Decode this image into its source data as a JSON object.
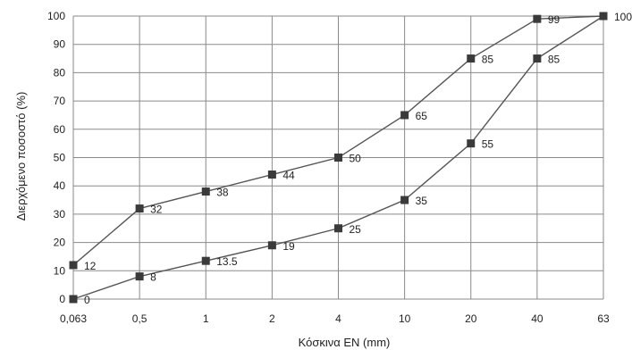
{
  "chart_data": {
    "type": "line",
    "title": "",
    "xlabel": "Κόσκινα EN (mm)",
    "ylabel": "Διερχόμενο ποσοστό (%)",
    "categories": [
      "0,063",
      "0,5",
      "1",
      "2",
      "4",
      "10",
      "20",
      "40",
      "63"
    ],
    "ylim": [
      0,
      100
    ],
    "yticks": [
      0,
      10,
      20,
      30,
      40,
      50,
      60,
      70,
      80,
      90,
      100
    ],
    "grid": true,
    "legend": "none",
    "series": [
      {
        "values": [
          12,
          32,
          38,
          44,
          50,
          65,
          85,
          99,
          100
        ],
        "labels": [
          "12",
          "32",
          "38",
          "44",
          "50",
          "65",
          "85",
          "99",
          "100"
        ]
      },
      {
        "values": [
          0,
          8,
          13.5,
          19,
          25,
          35,
          55,
          85,
          100
        ],
        "labels": [
          "0",
          "8",
          "13.5",
          "19",
          "25",
          "35",
          "55",
          "85",
          ""
        ]
      }
    ],
    "colors": {
      "grid": "#8a8a8a",
      "line": "#555555",
      "marker": "#3a3a3a"
    }
  }
}
